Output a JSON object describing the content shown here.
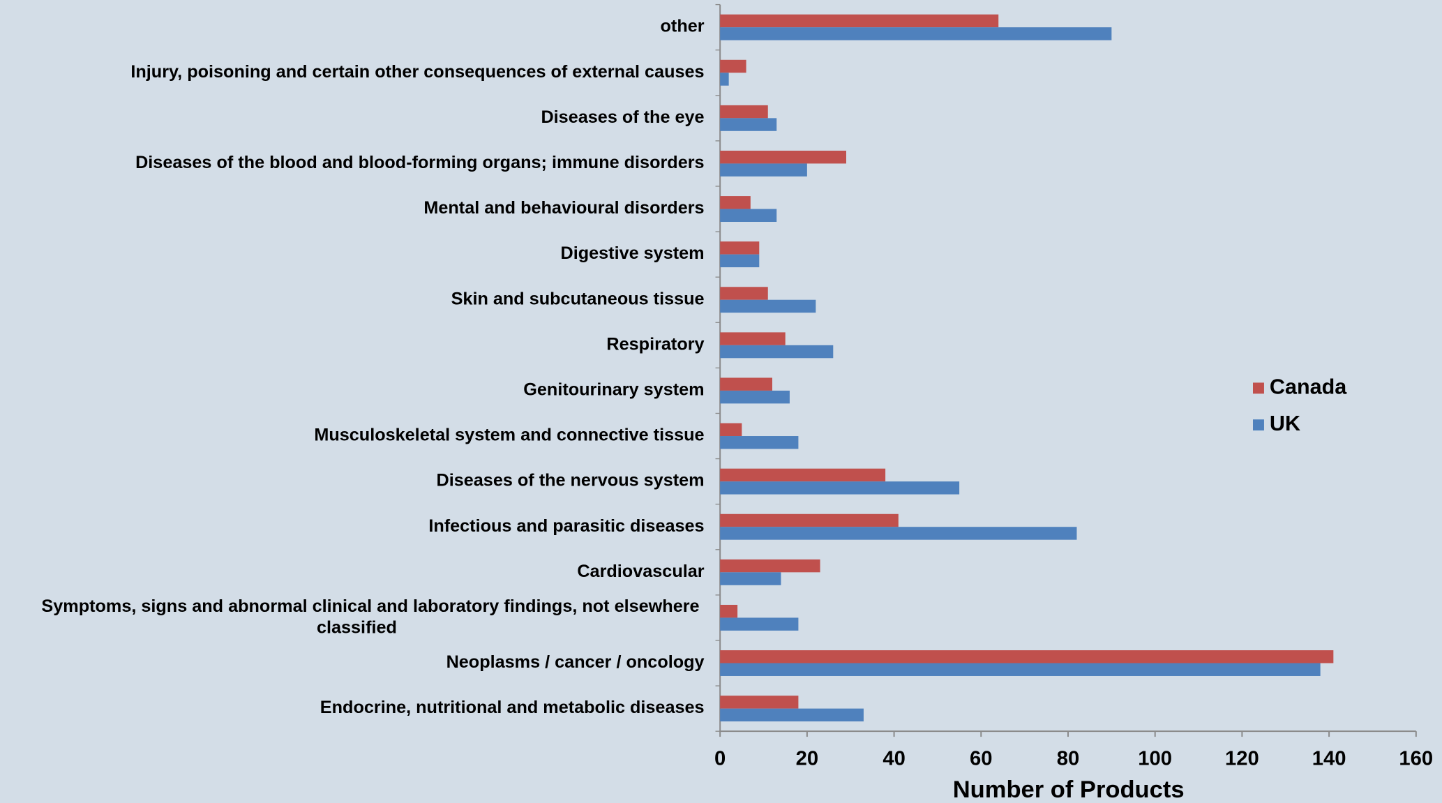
{
  "chart_data": {
    "type": "hbar",
    "xlabel": "Number of Products",
    "categories": [
      "other",
      "Injury, poisoning and certain other consequences of external causes",
      "Diseases of the eye",
      "Diseases of the blood and blood-forming organs; immune disorders",
      "Mental and behavioural disorders",
      "Digestive system",
      "Skin and subcutaneous tissue",
      "Respiratory",
      "Genitourinary system",
      "Musculoskeletal system and connective tissue",
      "Diseases of the nervous system",
      "Infectious and parasitic diseases",
      "Cardiovascular",
      "Symptoms, signs and abnormal clinical and laboratory findings, not elsewhere classified",
      "Neoplasms / cancer / oncology",
      "Endocrine, nutritional and metabolic diseases"
    ],
    "series": [
      {
        "name": "Canada",
        "color": "#c0504d",
        "values": [
          64,
          6,
          11,
          29,
          7,
          9,
          11,
          15,
          12,
          5,
          38,
          41,
          23,
          4,
          141,
          18
        ]
      },
      {
        "name": "UK",
        "color": "#4f81bd",
        "values": [
          90,
          2,
          13,
          20,
          13,
          9,
          22,
          26,
          16,
          18,
          55,
          82,
          14,
          18,
          138,
          33
        ]
      }
    ],
    "xlim": [
      0,
      160
    ],
    "xticks": [
      0,
      20,
      40,
      60,
      80,
      100,
      120,
      140,
      160
    ],
    "legend": "right"
  }
}
